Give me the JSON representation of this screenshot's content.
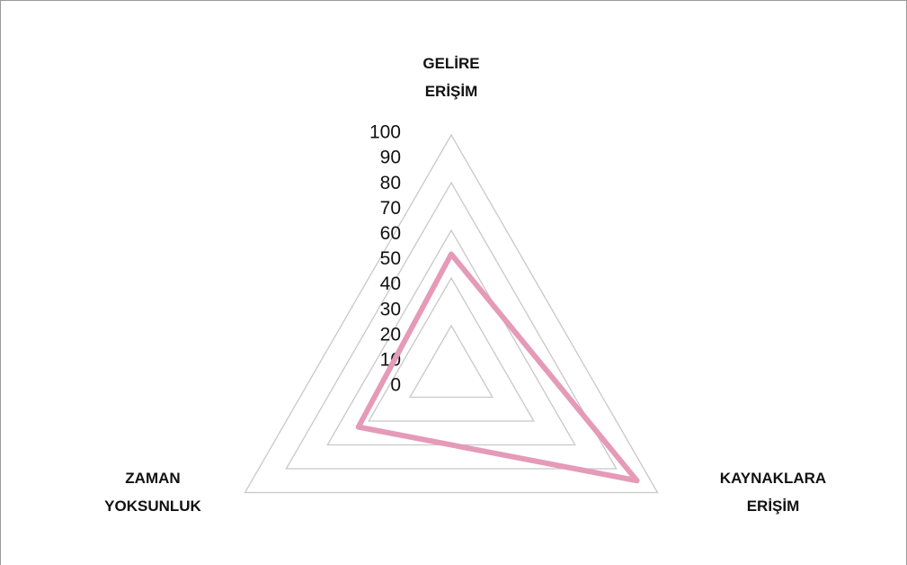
{
  "chart_data": {
    "type": "radar",
    "categories": [
      "GELİRE ERİŞİM",
      "KAYNAKLARA ERİŞİM",
      "ZAMAN YOKSUNLUK"
    ],
    "series": [
      {
        "color": "#e59ab7",
        "values": [
          50,
          90,
          45
        ]
      }
    ],
    "rlim": [
      0,
      100
    ],
    "rticks": [
      0,
      10,
      20,
      30,
      40,
      50,
      60,
      70,
      80,
      90,
      100
    ],
    "grid_ticks": [
      20,
      40,
      60,
      80,
      100
    ],
    "grid": true
  }
}
